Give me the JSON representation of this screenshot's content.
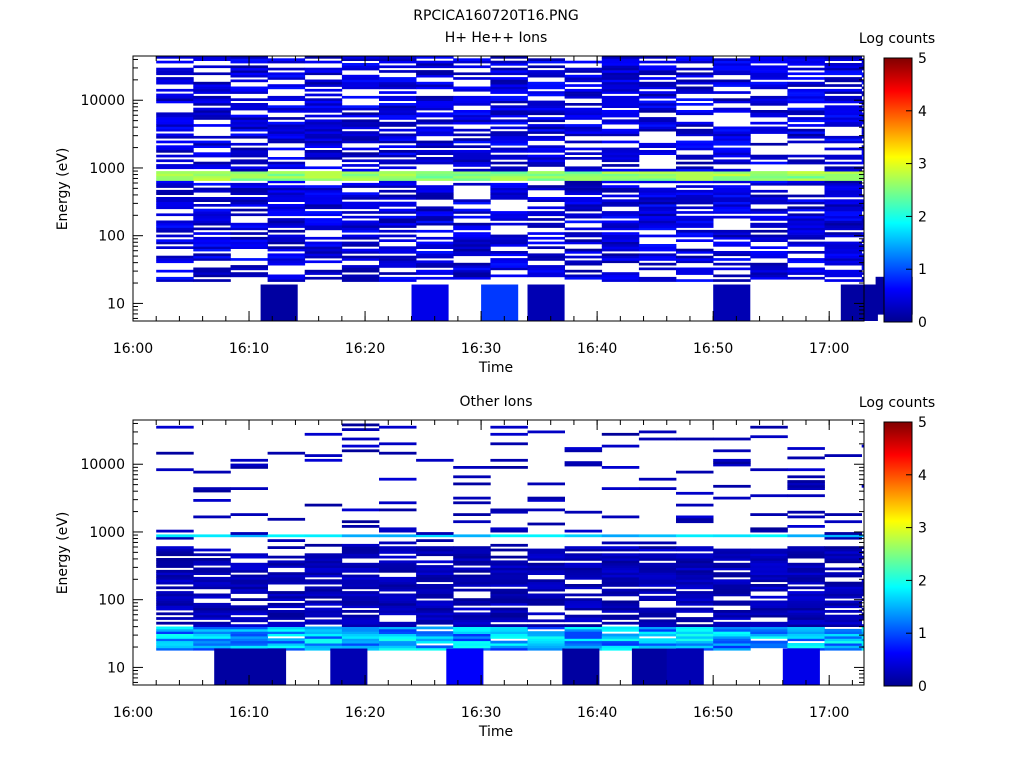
{
  "figure": {
    "title": "RPCICA160720T16.PNG"
  },
  "chart_data": [
    {
      "type": "heatmap",
      "title": "H+ He++ Ions",
      "xlabel": "Time",
      "ylabel": "Energy (eV)",
      "colorbar_label": "Log counts",
      "x_scale": "time",
      "y_scale": "log",
      "xlim": [
        "16:00",
        "17:03"
      ],
      "ylim": [
        5.5,
        45000
      ],
      "x_ticks": [
        "16:00",
        "16:10",
        "16:20",
        "16:30",
        "16:40",
        "16:50",
        "17:00"
      ],
      "y_ticks": [
        "10",
        "100",
        "1000",
        "10000"
      ],
      "colorbar_range": [
        0,
        5
      ],
      "colorbar_ticks": [
        "0",
        "1",
        "2",
        "3",
        "4",
        "5"
      ],
      "time_start": "16:02",
      "time_end": "17:03",
      "time_step_min": 3.2,
      "energy_min": 21,
      "energy_max": 45000,
      "energy_channels": 96,
      "low_cutoff": 21,
      "density": 0.66,
      "level": 0.45,
      "hot_band": [
        650,
        900
      ],
      "hot_level": 2.6,
      "low_patches": [
        {
          "t": 9,
          "e": 10,
          "v": 0.1
        },
        {
          "t": 22,
          "e": 10,
          "v": 0.5
        },
        {
          "t": 28,
          "e": 10,
          "v": 0.9
        },
        {
          "t": 32,
          "e": 10,
          "v": 0.2
        },
        {
          "t": 48,
          "e": 10,
          "v": 0.2
        },
        {
          "t": 59,
          "e": 10,
          "v": 0.1
        },
        {
          "t": 62,
          "e": 13,
          "v": 0.1
        }
      ]
    },
    {
      "type": "heatmap",
      "title": "Other Ions",
      "xlabel": "Time",
      "ylabel": "Energy (eV)",
      "colorbar_label": "Log counts",
      "x_scale": "time",
      "y_scale": "log",
      "xlim": [
        "16:00",
        "17:03"
      ],
      "ylim": [
        5.5,
        45000
      ],
      "x_ticks": [
        "16:00",
        "16:10",
        "16:20",
        "16:30",
        "16:40",
        "16:50",
        "17:00"
      ],
      "y_ticks": [
        "10",
        "100",
        "1000",
        "10000"
      ],
      "colorbar_range": [
        0,
        5
      ],
      "colorbar_ticks": [
        "0",
        "1",
        "2",
        "3",
        "4",
        "5"
      ],
      "time_start": "16:02",
      "time_end": "17:03",
      "time_step_min": 3.2,
      "energy_min": 18,
      "energy_max": 40000,
      "energy_channels": 96,
      "low_cutoff": 18,
      "sparse_above": 600,
      "density_high": 0.12,
      "density_low": 0.72,
      "level": 0.25,
      "hot_band": [
        830,
        900
      ],
      "hot_level": 1.6,
      "warm_band": [
        18,
        40
      ],
      "warm_level": 1.9,
      "low_patches": [
        {
          "t": 5,
          "e": 10,
          "v": 0.1
        },
        {
          "t": 8,
          "e": 10,
          "v": 0.1
        },
        {
          "t": 15,
          "e": 10,
          "v": 0.2
        },
        {
          "t": 25,
          "e": 10,
          "v": 0.6
        },
        {
          "t": 35,
          "e": 10,
          "v": 0.1
        },
        {
          "t": 41,
          "e": 10,
          "v": 0.1
        },
        {
          "t": 44,
          "e": 10,
          "v": 0.2
        },
        {
          "t": 54,
          "e": 10,
          "v": 0.5
        }
      ]
    }
  ]
}
